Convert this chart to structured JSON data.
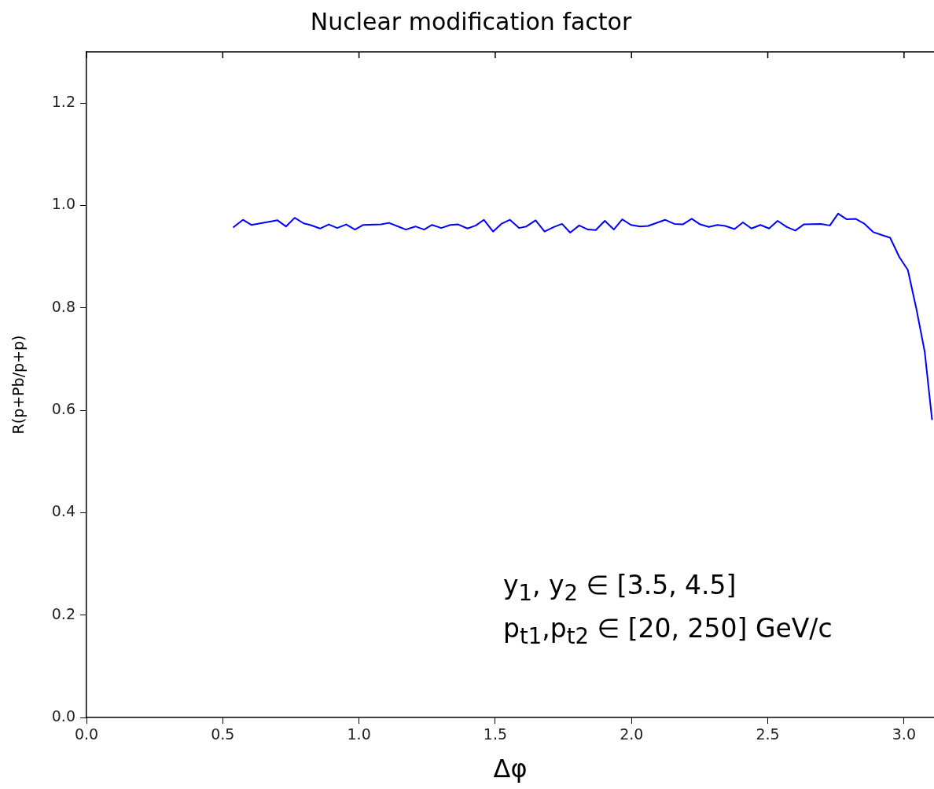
{
  "chart_data": {
    "type": "line",
    "title": "Nuclear modification factor",
    "xlabel": "Δφ",
    "ylabel": "R(p+Pb/p+p)",
    "annotations": [
      "y$_{1}$, y$_{2}$ ∈ [3.5, 4.5]",
      "p$_{t1}$,p$_{t2}$ ∈ [20, 250] GeV/c"
    ],
    "xlim": [
      0,
      3.11
    ],
    "xticks": [
      {
        "value": 0,
        "label": "0.0"
      },
      0.5,
      {
        "value": 1,
        "label": "1.0"
      },
      1.5,
      {
        "value": 2,
        "label": "2.0"
      },
      2.5,
      {
        "value": 3,
        "label": "3.0"
      }
    ],
    "ylim": [
      0,
      1.3
    ],
    "yticks": [
      {
        "value": 0,
        "label": "0.0"
      },
      0.2,
      0.4,
      0.6,
      0.8,
      {
        "value": 1,
        "label": "1.0"
      },
      1.2
    ],
    "grid": false,
    "legend": false,
    "marker": "none",
    "line_style": "solid",
    "series": [
      {
        "color": "#0000ff",
        "x": [
          0.538,
          0.574,
          0.605,
          0.701,
          0.732,
          0.764,
          0.797,
          0.821,
          0.857,
          0.889,
          0.92,
          0.953,
          0.985,
          1.016,
          1.081,
          1.11,
          1.172,
          1.207,
          1.239,
          1.268,
          1.302,
          1.335,
          1.364,
          1.398,
          1.429,
          1.458,
          1.492,
          1.522,
          1.554,
          1.588,
          1.614,
          1.648,
          1.681,
          1.715,
          1.745,
          1.775,
          1.808,
          1.84,
          1.869,
          1.902,
          1.935,
          1.966,
          1.998,
          2.032,
          2.061,
          2.123,
          2.157,
          2.188,
          2.221,
          2.252,
          2.284,
          2.315,
          2.344,
          2.378,
          2.409,
          2.44,
          2.473,
          2.505,
          2.536,
          2.57,
          2.601,
          2.632,
          2.694,
          2.728,
          2.758,
          2.79,
          2.822,
          2.853,
          2.887,
          2.92,
          2.949,
          2.983,
          3.014,
          3.045,
          3.076,
          3.103
        ],
        "values": [
          0.957,
          0.972,
          0.962,
          0.971,
          0.959,
          0.976,
          0.965,
          0.962,
          0.955,
          0.963,
          0.956,
          0.963,
          0.953,
          0.962,
          0.963,
          0.966,
          0.953,
          0.959,
          0.953,
          0.962,
          0.956,
          0.962,
          0.963,
          0.955,
          0.961,
          0.972,
          0.949,
          0.964,
          0.972,
          0.956,
          0.959,
          0.971,
          0.949,
          0.958,
          0.964,
          0.947,
          0.961,
          0.953,
          0.952,
          0.97,
          0.953,
          0.973,
          0.962,
          0.959,
          0.96,
          0.972,
          0.964,
          0.963,
          0.974,
          0.963,
          0.958,
          0.962,
          0.96,
          0.954,
          0.967,
          0.955,
          0.962,
          0.955,
          0.97,
          0.958,
          0.951,
          0.963,
          0.964,
          0.961,
          0.984,
          0.973,
          0.974,
          0.965,
          0.948,
          0.942,
          0.937,
          0.899,
          0.874,
          0.799,
          0.714,
          0.581
        ]
      }
    ]
  }
}
